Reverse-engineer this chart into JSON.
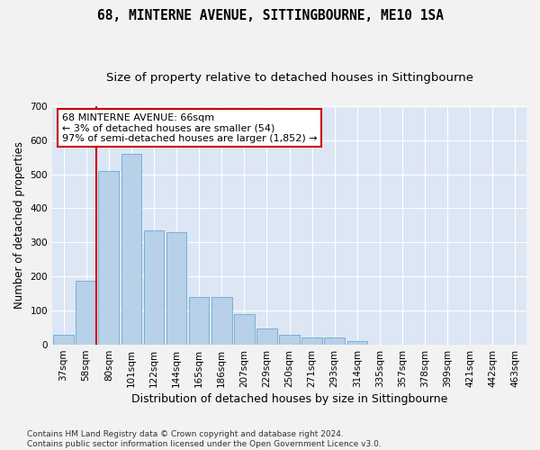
{
  "title": "68, MINTERNE AVENUE, SITTINGBOURNE, ME10 1SA",
  "subtitle": "Size of property relative to detached houses in Sittingbourne",
  "xlabel": "Distribution of detached houses by size in Sittingbourne",
  "ylabel": "Number of detached properties",
  "bar_color": "#b8d0e8",
  "bar_edge_color": "#6aaad4",
  "background_color": "#dce6f5",
  "grid_color": "#ffffff",
  "fig_background": "#f2f2f2",
  "categories": [
    "37sqm",
    "58sqm",
    "80sqm",
    "101sqm",
    "122sqm",
    "144sqm",
    "165sqm",
    "186sqm",
    "207sqm",
    "229sqm",
    "250sqm",
    "271sqm",
    "293sqm",
    "314sqm",
    "335sqm",
    "357sqm",
    "378sqm",
    "399sqm",
    "421sqm",
    "442sqm",
    "463sqm"
  ],
  "values": [
    28,
    188,
    510,
    560,
    335,
    330,
    140,
    140,
    90,
    48,
    28,
    20,
    20,
    10,
    0,
    0,
    0,
    0,
    0,
    0,
    0
  ],
  "vline_x_index": 1.45,
  "annotation_line1": "68 MINTERNE AVENUE: 66sqm",
  "annotation_line2": "← 3% of detached houses are smaller (54)",
  "annotation_line3": "97% of semi-detached houses are larger (1,852) →",
  "annotation_box_color": "#ffffff",
  "annotation_box_edge_color": "#cc0000",
  "vline_color": "#cc0000",
  "ylim": [
    0,
    700
  ],
  "yticks": [
    0,
    100,
    200,
    300,
    400,
    500,
    600,
    700
  ],
  "footer": "Contains HM Land Registry data © Crown copyright and database right 2024.\nContains public sector information licensed under the Open Government Licence v3.0.",
  "title_fontsize": 10.5,
  "subtitle_fontsize": 9.5,
  "xlabel_fontsize": 9,
  "ylabel_fontsize": 8.5,
  "tick_fontsize": 7.5,
  "annotation_fontsize": 8,
  "footer_fontsize": 6.5
}
